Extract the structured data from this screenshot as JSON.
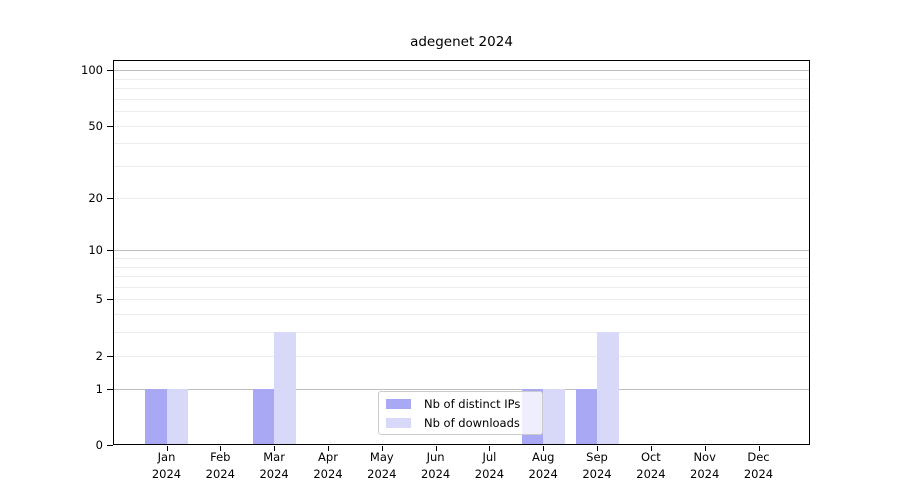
{
  "chart_data": {
    "type": "bar",
    "title": "adegenet 2024",
    "categories": [
      "Jan",
      "Feb",
      "Mar",
      "Apr",
      "May",
      "Jun",
      "Jul",
      "Aug",
      "Sep",
      "Oct",
      "Nov",
      "Dec"
    ],
    "category_year": "2024",
    "series": [
      {
        "name": "Nb of distinct IPs",
        "color": "#a8a8f5",
        "values": [
          1,
          0,
          1,
          0,
          0,
          0,
          0,
          1,
          1,
          0,
          0,
          0
        ]
      },
      {
        "name": "Nb of downloads",
        "color": "#d8d8f8",
        "values": [
          1,
          0,
          3,
          0,
          0,
          0,
          0,
          1,
          3,
          0,
          0,
          0
        ]
      }
    ],
    "xlabel": "",
    "ylabel": "",
    "yscale": "log1p",
    "ylim": [
      0,
      115
    ],
    "y_tick_labels": [
      0,
      1,
      2,
      5,
      10,
      20,
      50,
      100
    ],
    "major_gridlines": [
      1,
      10,
      100
    ],
    "minor_gridlines": [
      2,
      3,
      4,
      5,
      6,
      7,
      8,
      9,
      20,
      30,
      40,
      50,
      60,
      70,
      80,
      90
    ],
    "grid": true,
    "legend_position": "lower center",
    "colors": {
      "major_grid": "#bdbdbd",
      "minor_grid": "#ececec",
      "spine": "#000000",
      "legend_border": "#cbcbcb",
      "legend_bg": "rgba(255,255,255,0.8)",
      "text": "#000000"
    }
  }
}
